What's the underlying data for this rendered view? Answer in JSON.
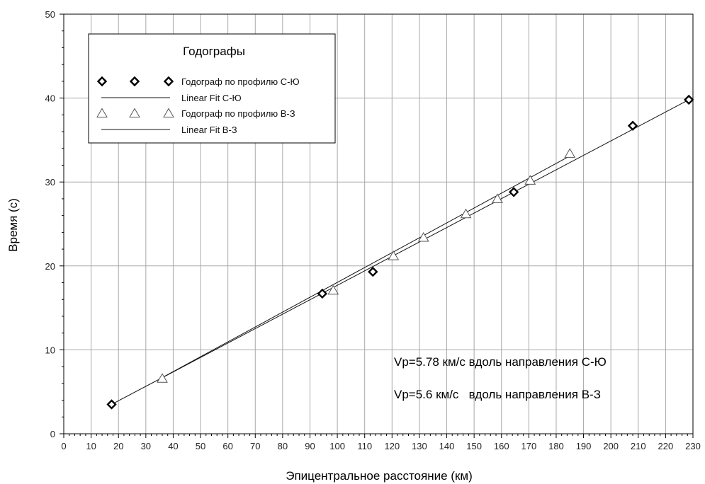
{
  "chart_data": {
    "type": "scatter",
    "title": "",
    "xlabel": "Эпицентральное расстояние (км)",
    "ylabel": "Время (с)",
    "xlim": [
      0,
      230
    ],
    "ylim": [
      0,
      50
    ],
    "xticks": [
      0,
      10,
      20,
      30,
      40,
      50,
      60,
      70,
      80,
      90,
      100,
      110,
      120,
      130,
      140,
      150,
      160,
      170,
      180,
      190,
      200,
      210,
      220,
      230
    ],
    "yticks": [
      0,
      10,
      20,
      30,
      40,
      50
    ],
    "grid": true,
    "legend_position": "top-left",
    "legend": {
      "title": "Годографы",
      "entries": [
        {
          "label": "Годограф по профилю С-Ю",
          "marker": "diamond"
        },
        {
          "label": "Linear Fit С-Ю",
          "marker": "line"
        },
        {
          "label": "Годограф по профилю В-З",
          "marker": "triangle"
        },
        {
          "label": "Linear Fit В-З",
          "marker": "line"
        }
      ]
    },
    "series": [
      {
        "name": "Годограф по профилю С-Ю",
        "marker": "diamond",
        "x": [
          17.5,
          94.5,
          113,
          164.5,
          208,
          228.5
        ],
        "y": [
          3.5,
          16.7,
          19.3,
          28.8,
          36.7,
          39.8
        ]
      },
      {
        "name": "Годограф по профилю В-З",
        "marker": "triangle",
        "x": [
          36,
          98.5,
          120.5,
          131.5,
          147,
          158.5,
          170.5,
          185
        ],
        "y": [
          6.6,
          17.1,
          21.2,
          23.4,
          26.2,
          28,
          30.2,
          33.4
        ]
      },
      {
        "name": "Linear Fit С-Ю",
        "type": "line",
        "x": [
          17.5,
          228.5
        ],
        "y": [
          3.5,
          39.8
        ]
      },
      {
        "name": "Linear Fit В-З",
        "type": "line",
        "x": [
          36,
          185
        ],
        "y": [
          6.7,
          33.1
        ]
      }
    ],
    "annotations": [
      "Vp=5.78 км/с вдоль направления С-Ю",
      "Vp=5.6 км/с   вдоль направления В-З"
    ]
  }
}
